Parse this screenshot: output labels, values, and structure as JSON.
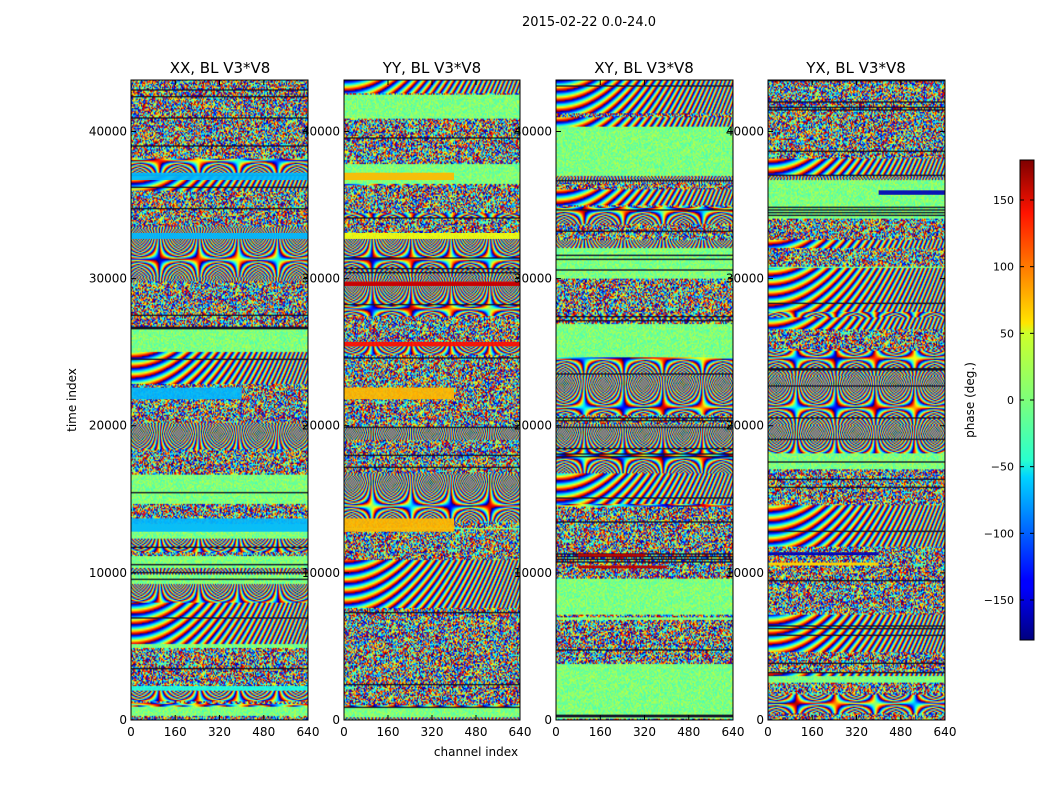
{
  "figure": {
    "suptitle": "2015-02-22 0.0-24.0"
  },
  "chart_data": {
    "type": "heatmap",
    "quantity": "visibility phase per channel and time sample",
    "xlabel": "channel index",
    "ylabel": "time index",
    "xlim": [
      0,
      640
    ],
    "ylim": [
      0,
      43500
    ],
    "x_ticks": [
      0,
      160,
      320,
      480,
      640
    ],
    "y_ticks": [
      0,
      10000,
      20000,
      30000,
      40000
    ],
    "colormap": "jet",
    "colorbar": {
      "label": "phase (deg.)",
      "range": [
        -180,
        180
      ],
      "ticks": [
        -150,
        -100,
        -50,
        0,
        50,
        100,
        150
      ],
      "tick_labels": [
        "−150",
        "−100",
        "−50",
        "0",
        "50",
        "100",
        "150"
      ]
    },
    "panels": [
      {
        "title": "XX, BL V3*V8",
        "bands": [
          {
            "y": [
              36700,
              37200
            ],
            "x": [
              0,
              640
            ],
            "phase": -70
          },
          {
            "y": [
              21800,
              22600
            ],
            "x": [
              0,
              400
            ],
            "phase": -70
          },
          {
            "y": [
              12800,
              13700
            ],
            "x": [
              0,
              640
            ],
            "phase": -70
          },
          {
            "y": [
              32700,
              33100
            ],
            "x": [
              0,
              640
            ],
            "phase": -70
          },
          {
            "y": [
              2000,
              2300
            ],
            "x": [
              0,
              640
            ],
            "phase": -35
          }
        ]
      },
      {
        "title": "YY, BL V3*V8",
        "bands": [
          {
            "y": [
              36700,
              37200
            ],
            "x": [
              0,
              400
            ],
            "phase": 70
          },
          {
            "y": [
              21800,
              22600
            ],
            "x": [
              0,
              400
            ],
            "phase": 70
          },
          {
            "y": [
              12800,
              13700
            ],
            "x": [
              0,
              400
            ],
            "phase": 70
          },
          {
            "y": [
              25400,
              25700
            ],
            "x": [
              0,
              640
            ],
            "phase": 130
          },
          {
            "y": [
              29500,
              29800
            ],
            "x": [
              0,
              640
            ],
            "phase": 150
          },
          {
            "y": [
              32700,
              33100
            ],
            "x": [
              0,
              640
            ],
            "phase": 40
          }
        ]
      },
      {
        "title": "XY, BL V3*V8",
        "bands": [
          {
            "y": [
              11100,
              11300
            ],
            "x": [
              80,
              320
            ],
            "phase": 160
          },
          {
            "y": [
              10300,
              10500
            ],
            "x": [
              80,
              400
            ],
            "phase": 160
          }
        ]
      },
      {
        "title": "YX, BL V3*V8",
        "bands": [
          {
            "y": [
              11200,
              11400
            ],
            "x": [
              0,
              400
            ],
            "phase": -160
          },
          {
            "y": [
              10500,
              10700
            ],
            "x": [
              0,
              400
            ],
            "phase": 60
          },
          {
            "y": [
              35700,
              36000
            ],
            "x": [
              400,
              640
            ],
            "phase": -160
          }
        ]
      }
    ]
  }
}
